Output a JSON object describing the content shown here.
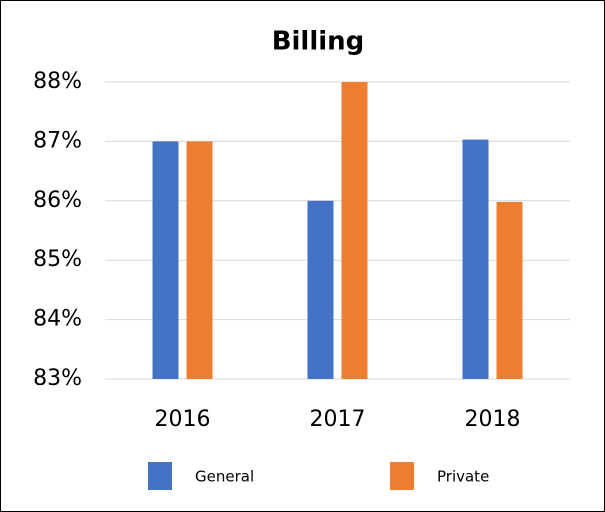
{
  "chart_data": {
    "type": "bar",
    "title": "Billing",
    "categories": [
      "2016",
      "2017",
      "2018"
    ],
    "series": [
      {
        "name": "General",
        "color": "#4472c4",
        "values": [
          87,
          86,
          87.03
        ]
      },
      {
        "name": "Private",
        "color": "#ed7d31",
        "values": [
          87,
          88,
          85.98
        ]
      }
    ],
    "ylim": [
      83,
      88
    ],
    "yticks": [
      {
        "value": 83,
        "label": "83%"
      },
      {
        "value": 84,
        "label": "84%"
      },
      {
        "value": 85,
        "label": "85%"
      },
      {
        "value": 86,
        "label": "86%"
      },
      {
        "value": 87,
        "label": "87%"
      },
      {
        "value": 88,
        "label": "88%"
      }
    ],
    "grid": true,
    "legend": "bottom"
  }
}
